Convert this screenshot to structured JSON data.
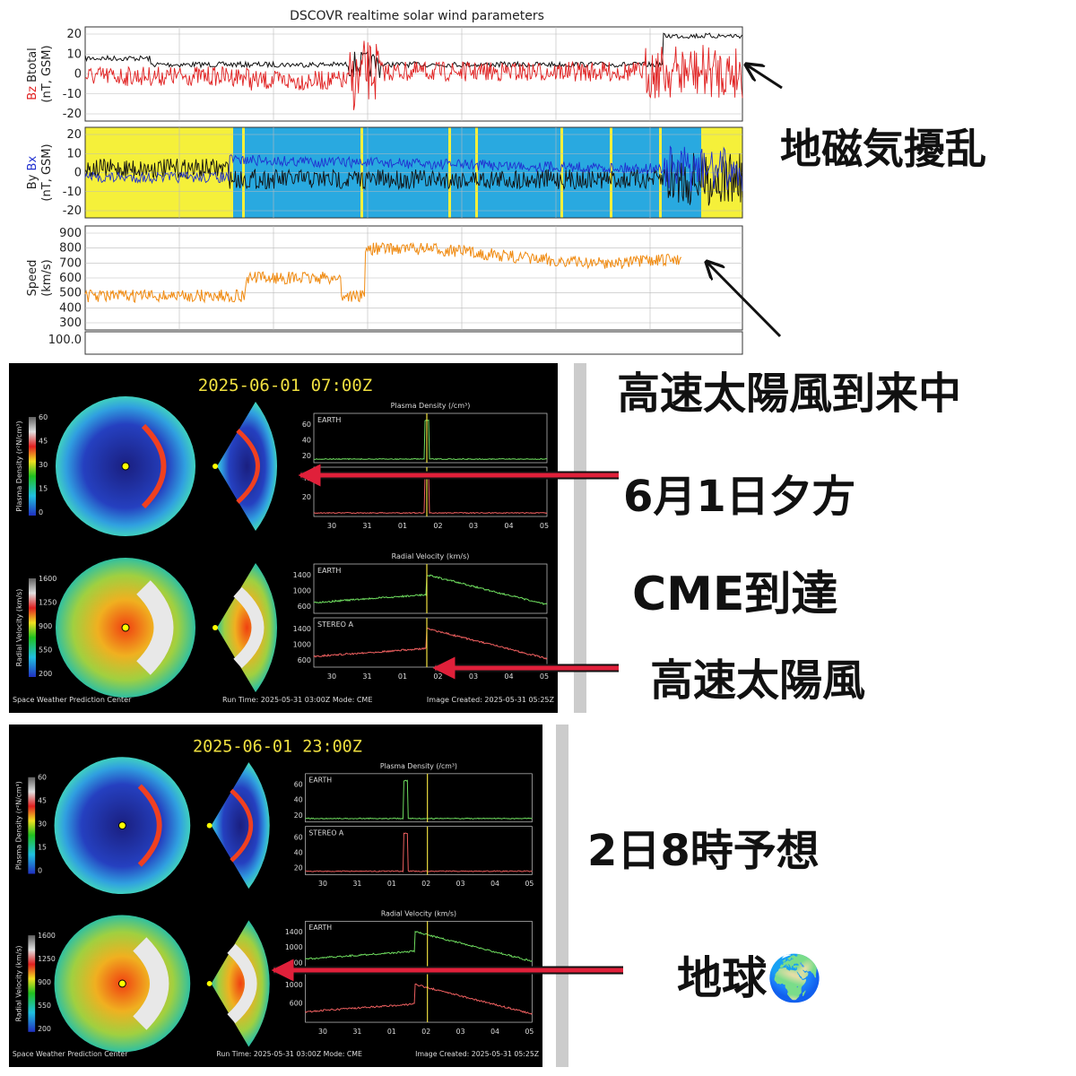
{
  "dscovr": {
    "title": "DSCOVR realtime solar wind parameters",
    "panels": [
      {
        "label_a": "Bz",
        "label_b": "Btotal",
        "units": "(nT, GSM)",
        "yticks": [
          20,
          10,
          0,
          -10,
          -20
        ]
      },
      {
        "label_a": "By",
        "label_b": "Bx",
        "units": "(nT, GSM)",
        "yticks": [
          20,
          10,
          0,
          -10,
          -20
        ]
      },
      {
        "label_a": "Speed",
        "units": "(km/s)",
        "yticks": [
          900,
          800,
          700,
          600,
          500,
          400,
          300
        ]
      }
    ],
    "density_tick": "100.0"
  },
  "annotations": [
    "地磁気擾乱",
    "高速太陽風到来中",
    "6月1日夕方",
    "CME到達",
    "高速太陽風",
    "2日8時予想",
    "地球🌍"
  ],
  "enlil": [
    {
      "timestamp": "2025-06-01  07:00Z",
      "colorbars": [
        {
          "label": "Plasma Density (r²N/cm³)",
          "ticks": [
            60,
            45,
            30,
            15,
            0
          ]
        },
        {
          "label": "Radial Velocity (km/s)",
          "ticks": [
            1600,
            1250,
            900,
            550,
            200
          ]
        }
      ],
      "plots": [
        {
          "title": "Plasma Density (/cm³)",
          "subplots": [
            {
              "name": "EARTH",
              "yticks": [
                60,
                40,
                20
              ]
            },
            {
              "yticks": [
                40,
                20
              ]
            }
          ]
        },
        {
          "title": "Radial Velocity (km/s)",
          "subplots": [
            {
              "name": "EARTH",
              "yticks": [
                1400,
                1000,
                600
              ]
            },
            {
              "name": "STEREO A",
              "yticks": [
                1400,
                1000,
                600
              ]
            }
          ]
        }
      ],
      "xticks": [
        "30",
        "31",
        "01",
        "02",
        "03",
        "04",
        "05"
      ],
      "footer": {
        "left": "Space Weather Prediction Center",
        "middle": "Run Time: 2025-05-31 03:00Z   Mode: CME",
        "right": "Image Created: 2025-05-31 05:25Z"
      }
    },
    {
      "timestamp": "2025-06-01  23:00Z",
      "colorbars": [
        {
          "label": "Plasma Density (r²N/cm³)",
          "ticks": [
            60,
            45,
            30,
            15,
            0
          ]
        },
        {
          "label": "Radial Velocity (km/s)",
          "ticks": [
            1600,
            1250,
            900,
            550,
            200
          ]
        }
      ],
      "plots": [
        {
          "title": "Plasma Density (/cm³)",
          "subplots": [
            {
              "name": "EARTH",
              "yticks": [
                60,
                40,
                20
              ]
            },
            {
              "name": "STEREO A",
              "yticks": [
                60,
                40,
                20
              ]
            }
          ]
        },
        {
          "title": "Radial Velocity (km/s)",
          "subplots": [
            {
              "name": "EARTH",
              "yticks": [
                1400,
                1000,
                600
              ]
            },
            {
              "yticks": [
                1000,
                600
              ]
            }
          ]
        }
      ],
      "xticks": [
        "30",
        "31",
        "01",
        "02",
        "03",
        "04",
        "05"
      ],
      "footer": {
        "left": "Space Weather Prediction Center",
        "middle": "Run Time: 2025-05-31 03:00Z   Mode: CME",
        "right": "Image Created: 2025-05-31 05:25Z"
      }
    }
  ]
}
